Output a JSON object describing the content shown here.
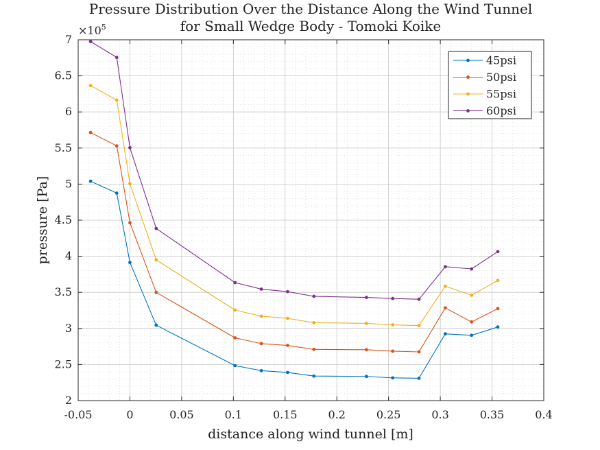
{
  "chart_data": {
    "type": "line",
    "title": "Pressure Distribution Over the Distance Along the Wind Tunnel",
    "subtitle": "for Small Wedge Body - Tomoki Koike",
    "xlabel": "distance along wind tunnel [m]",
    "ylabel": "pressure [Pa]",
    "y_exponent_base": "×10",
    "y_exponent_power": "5",
    "xlim": [
      -0.05,
      0.4
    ],
    "ylim": [
      200000,
      700000
    ],
    "x_ticks": [
      -0.05,
      0,
      0.05,
      0.1,
      0.15,
      0.2,
      0.25,
      0.3,
      0.35,
      0.4
    ],
    "x_tick_labels": [
      "-0.05",
      "0",
      "0.05",
      "0.1",
      "0.15",
      "0.2",
      "0.25",
      "0.3",
      "0.35",
      "0.4"
    ],
    "y_ticks": [
      200000,
      250000,
      300000,
      350000,
      400000,
      450000,
      500000,
      550000,
      600000,
      650000,
      700000
    ],
    "y_tick_labels": [
      "2",
      "2.5",
      "3",
      "3.5",
      "4",
      "4.5",
      "5",
      "5.5",
      "6",
      "6.5",
      "7"
    ],
    "grid": true,
    "minor_grid": true,
    "legend_position": "top-right",
    "x": [
      -0.038,
      -0.0127,
      0,
      0.0254,
      0.1016,
      0.127,
      0.1524,
      0.1778,
      0.2286,
      0.254,
      0.2794,
      0.3048,
      0.3302,
      0.3556
    ],
    "series": [
      {
        "name": "45psi",
        "color": "#0072BD",
        "values": [
          504000,
          487500,
          391500,
          304500,
          248500,
          241500,
          239000,
          234000,
          233500,
          231500,
          231000,
          292500,
          290500,
          302000
        ]
      },
      {
        "name": "50psi",
        "color": "#D95319",
        "values": [
          571500,
          553000,
          446500,
          350000,
          287000,
          279000,
          276500,
          271000,
          270500,
          268500,
          267500,
          328500,
          309000,
          327500
        ]
      },
      {
        "name": "55psi",
        "color": "#EDB120",
        "values": [
          636500,
          616500,
          500500,
          395000,
          325500,
          317000,
          314000,
          308000,
          307000,
          305000,
          304000,
          358500,
          346000,
          366500
        ]
      },
      {
        "name": "60psi",
        "color": "#7E2F8E",
        "values": [
          697500,
          675500,
          550500,
          438500,
          363500,
          354500,
          351000,
          344500,
          343000,
          341500,
          340500,
          385500,
          382500,
          406500
        ]
      }
    ]
  }
}
